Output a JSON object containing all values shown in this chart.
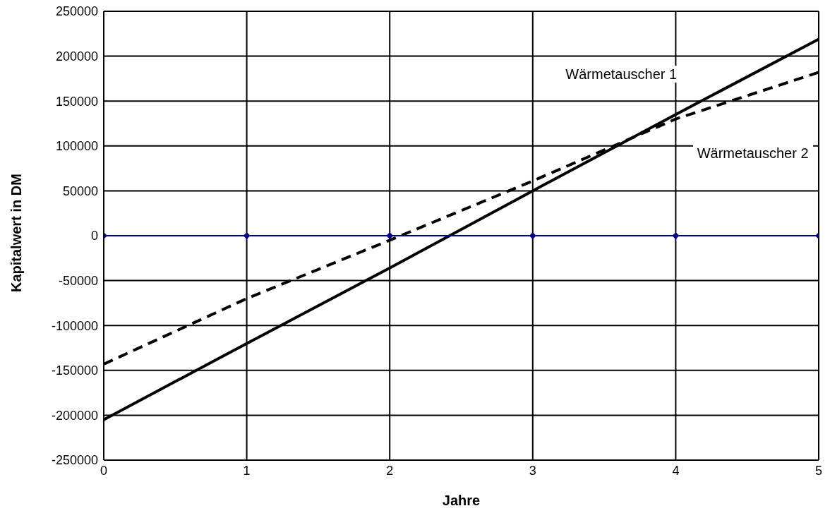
{
  "chart_data": {
    "type": "line",
    "xlabel": "Jahre",
    "ylabel": "Kapitalwert in DM",
    "x": [
      0,
      1,
      2,
      3,
      4,
      5
    ],
    "series": [
      {
        "name": "Wärmetauscher 1",
        "color": "#000000",
        "line_style": "solid",
        "marker": "none",
        "values": [
          -205000,
          -120000,
          -36000,
          50000,
          135000,
          219000
        ]
      },
      {
        "name": "Wärmetauscher 2",
        "color": "#000000",
        "line_style": "dashed",
        "marker": "none",
        "values": [
          -143000,
          -70000,
          -5000,
          61000,
          130000,
          182000
        ]
      },
      {
        "color": "#000080",
        "line_style": "solid",
        "marker": "diamond",
        "values": [
          0,
          0,
          0,
          0,
          0,
          0
        ]
      }
    ],
    "xlim": [
      0,
      5
    ],
    "xticks": [
      0,
      1,
      2,
      3,
      4,
      5
    ],
    "ylim": [
      -250000,
      250000
    ],
    "yticks": [
      -250000,
      -200000,
      -150000,
      -100000,
      -50000,
      0,
      50000,
      100000,
      150000,
      200000,
      250000
    ],
    "grid": true
  }
}
